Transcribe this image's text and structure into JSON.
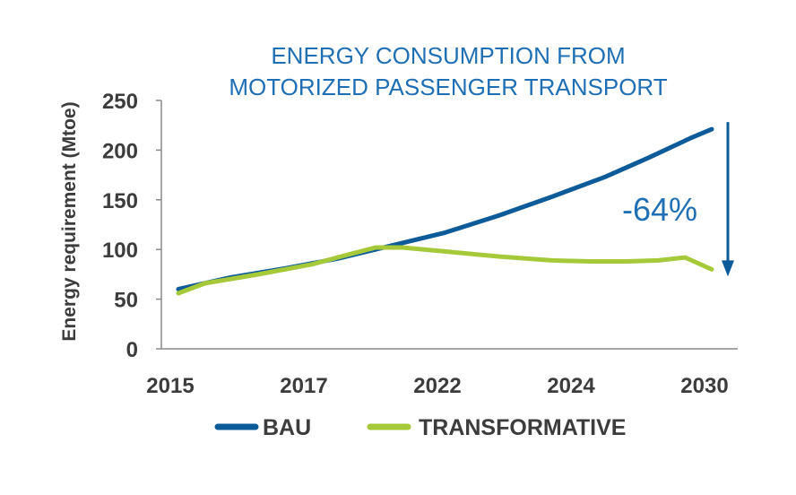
{
  "chart_data": {
    "type": "line",
    "title_lines": [
      "ENERGY CONSUMPTION FROM",
      "MOTORIZED PASSENGER TRANSPORT"
    ],
    "ylabel": "Energy requirement (Mtoe)",
    "xlabel": "",
    "ylim": [
      0,
      250
    ],
    "yticks": [
      0,
      50,
      100,
      150,
      200,
      250
    ],
    "xticks": [
      "2015",
      "2017",
      "2022",
      "2024",
      "2030"
    ],
    "grid": false,
    "legend_position": "bottom",
    "series": [
      {
        "name": "BAU",
        "color": "#0d5b98",
        "points": [
          {
            "x": 0.0,
            "y": 60
          },
          {
            "x": 0.5,
            "y": 72
          },
          {
            "x": 1.0,
            "y": 81
          },
          {
            "x": 1.5,
            "y": 91
          },
          {
            "x": 2.0,
            "y": 104
          },
          {
            "x": 2.5,
            "y": 117
          },
          {
            "x": 3.0,
            "y": 134
          },
          {
            "x": 3.5,
            "y": 153
          },
          {
            "x": 4.0,
            "y": 173
          },
          {
            "x": 4.4,
            "y": 192
          },
          {
            "x": 4.8,
            "y": 212
          },
          {
            "x": 5.0,
            "y": 221
          }
        ]
      },
      {
        "name": "TRANSFORMATIVE",
        "color": "#a6c93a",
        "points": [
          {
            "x": 0.0,
            "y": 56
          },
          {
            "x": 0.25,
            "y": 66
          },
          {
            "x": 0.75,
            "y": 75
          },
          {
            "x": 1.25,
            "y": 85
          },
          {
            "x": 1.6,
            "y": 95
          },
          {
            "x": 1.85,
            "y": 102
          },
          {
            "x": 2.1,
            "y": 102
          },
          {
            "x": 2.5,
            "y": 98
          },
          {
            "x": 3.0,
            "y": 93
          },
          {
            "x": 3.5,
            "y": 89
          },
          {
            "x": 3.85,
            "y": 88
          },
          {
            "x": 4.2,
            "y": 88
          },
          {
            "x": 4.5,
            "y": 89
          },
          {
            "x": 4.75,
            "y": 92
          },
          {
            "x": 5.0,
            "y": 80
          }
        ]
      }
    ],
    "annotation": {
      "text": "-64%",
      "color": "#1f6fb5",
      "arrow_color": "#0d5b98"
    }
  }
}
